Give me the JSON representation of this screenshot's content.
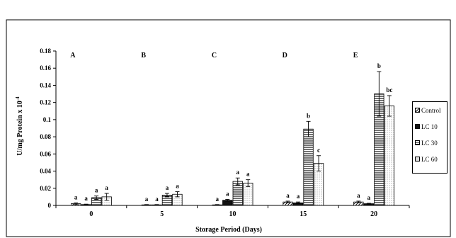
{
  "chart_data": {
    "type": "bar",
    "title": "",
    "xlabel": "Storage Period (Days)",
    "ylabel": "U/mg Protein x 10",
    "ylabel_exponent": "-4",
    "ylim": [
      0,
      0.18
    ],
    "yticks": [
      "0",
      "0.02",
      "0.04",
      "0.06",
      "0.08",
      "0.1",
      "0.12",
      "0.14",
      "0.16",
      "0.18"
    ],
    "categories": [
      "0",
      "5",
      "10",
      "15",
      "20"
    ],
    "group_letters": [
      "A",
      "B",
      "C",
      "D",
      "E"
    ],
    "legend_position": "right",
    "grid": false,
    "series": [
      {
        "name": "Control",
        "pattern": "diagonal",
        "values": [
          0.002,
          0.0005,
          0.0005,
          0.004,
          0.004
        ],
        "errors": [
          0.001,
          0.0005,
          0.0005,
          0.001,
          0.001
        ],
        "labels": [
          "a",
          "a",
          "a",
          "a",
          "a"
        ]
      },
      {
        "name": "LC 10",
        "pattern": "solid",
        "values": [
          0.001,
          0.0005,
          0.006,
          0.003,
          0.002
        ],
        "errors": [
          0.0005,
          0.0005,
          0.001,
          0.001,
          0.0005
        ],
        "labels": [
          "a",
          "a",
          "a",
          "a",
          "a"
        ]
      },
      {
        "name": "LC 30",
        "pattern": "horizontal",
        "values": [
          0.009,
          0.012,
          0.028,
          0.089,
          0.13
        ],
        "errors": [
          0.002,
          0.002,
          0.004,
          0.009,
          0.026
        ],
        "labels": [
          "a",
          "a",
          "a",
          "b",
          "b"
        ]
      },
      {
        "name": "LC 60",
        "pattern": "dots",
        "values": [
          0.01,
          0.013,
          0.026,
          0.049,
          0.116
        ],
        "errors": [
          0.004,
          0.003,
          0.004,
          0.009,
          0.012
        ],
        "labels": [
          "a",
          "a",
          "a",
          "c",
          "bc"
        ]
      }
    ],
    "colors": {
      "axis": "#000000",
      "bar_fill": "#ffffff",
      "solid": "#111111"
    }
  }
}
